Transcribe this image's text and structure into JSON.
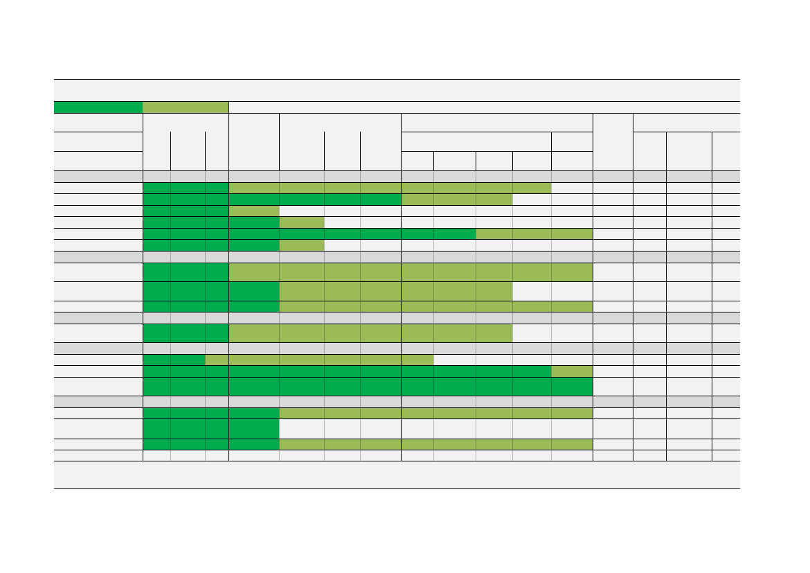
{
  "colors": {
    "full": "#00ad4e",
    "partial": "#9bbb59",
    "background": "#f2f2f2",
    "section_band": "#d9d9d9",
    "rule": "#000000"
  },
  "legend": [
    {
      "key": "full",
      "label": ""
    },
    {
      "key": "partial",
      "label": ""
    }
  ],
  "sections": [
    {
      "label": "",
      "rows": [
        {
          "label": "",
          "spans": [
            {
              "from": 0,
              "to": 3,
              "fill": "full"
            },
            {
              "from": 3,
              "to": 11,
              "fill": "partial"
            }
          ]
        },
        {
          "label": "",
          "spans": [
            {
              "from": 0,
              "to": 7,
              "fill": "full"
            },
            {
              "from": 7,
              "to": 10,
              "fill": "partial"
            }
          ]
        },
        {
          "label": "",
          "spans": [
            {
              "from": 0,
              "to": 3,
              "fill": "full"
            },
            {
              "from": 3,
              "to": 4,
              "fill": "partial"
            }
          ]
        },
        {
          "label": "",
          "spans": [
            {
              "from": 0,
              "to": 4,
              "fill": "full"
            },
            {
              "from": 4,
              "to": 5,
              "fill": "partial"
            }
          ]
        },
        {
          "label": "",
          "spans": [
            {
              "from": 0,
              "to": 9,
              "fill": "full"
            },
            {
              "from": 9,
              "to": 12,
              "fill": "partial"
            }
          ]
        },
        {
          "label": "",
          "spans": [
            {
              "from": 0,
              "to": 4,
              "fill": "full"
            },
            {
              "from": 4,
              "to": 5,
              "fill": "partial"
            }
          ]
        }
      ]
    },
    {
      "label": "",
      "rows": [
        {
          "label": "",
          "spans": [
            {
              "from": 0,
              "to": 3,
              "fill": "full"
            },
            {
              "from": 3,
              "to": 12,
              "fill": "partial"
            }
          ]
        },
        {
          "label": "",
          "spans": [
            {
              "from": 0,
              "to": 4,
              "fill": "full"
            },
            {
              "from": 4,
              "to": 10,
              "fill": "partial"
            }
          ]
        },
        {
          "label": "",
          "spans": [
            {
              "from": 0,
              "to": 4,
              "fill": "full"
            },
            {
              "from": 4,
              "to": 12,
              "fill": "partial"
            }
          ]
        }
      ]
    },
    {
      "label": "",
      "rows": [
        {
          "label": "",
          "spans": [
            {
              "from": 0,
              "to": 3,
              "fill": "full"
            },
            {
              "from": 3,
              "to": 10,
              "fill": "partial"
            }
          ]
        }
      ]
    },
    {
      "label": "",
      "rows": [
        {
          "label": "",
          "spans": [
            {
              "from": 0,
              "to": 2,
              "fill": "full"
            },
            {
              "from": 2,
              "to": 8,
              "fill": "partial"
            }
          ]
        },
        {
          "label": "",
          "spans": [
            {
              "from": 0,
              "to": 11,
              "fill": "full"
            },
            {
              "from": 11,
              "to": 12,
              "fill": "partial"
            }
          ]
        },
        {
          "label": "",
          "spans": [
            {
              "from": 0,
              "to": 12,
              "fill": "full"
            }
          ]
        }
      ]
    },
    {
      "label": "",
      "rows": [
        {
          "label": "",
          "spans": [
            {
              "from": 0,
              "to": 4,
              "fill": "full"
            },
            {
              "from": 4,
              "to": 12,
              "fill": "partial"
            }
          ]
        },
        {
          "label": "",
          "spans": [
            {
              "from": 0,
              "to": 4,
              "fill": "full"
            }
          ]
        },
        {
          "label": "",
          "spans": [
            {
              "from": 0,
              "to": 4,
              "fill": "full"
            },
            {
              "from": 4,
              "to": 12,
              "fill": "partial"
            }
          ]
        },
        {
          "label": "",
          "spans": []
        }
      ]
    }
  ],
  "footer_note": ""
}
